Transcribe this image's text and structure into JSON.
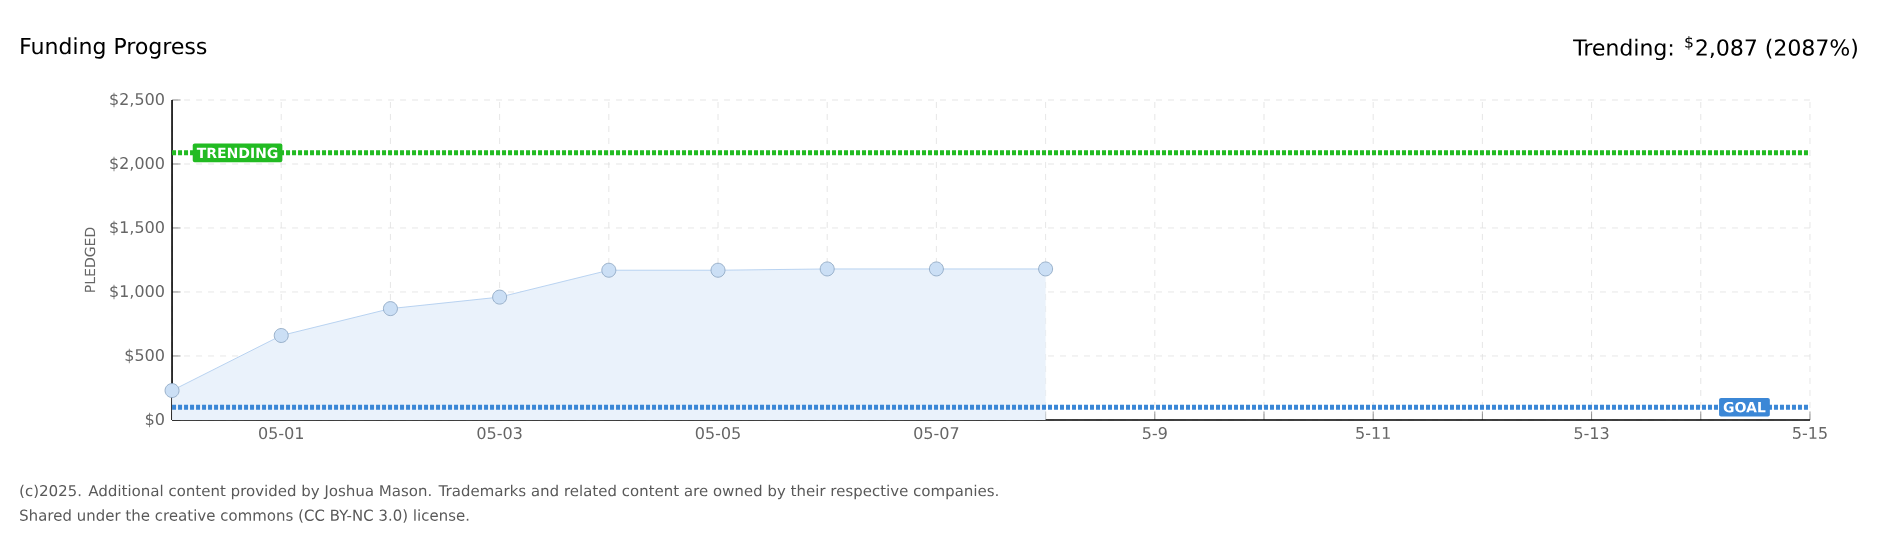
{
  "chart_data": {
    "type": "area",
    "title": "Funding Progress",
    "subtitle": "Trending: $^{$}$2,087 (2087%)",
    "ylabel": "PLEDGED",
    "categories": [
      null,
      "05-01",
      null,
      "05-03",
      null,
      "05-05",
      null,
      "05-07",
      null,
      "5-9",
      null,
      "5-11",
      null,
      "5-13",
      null,
      "5-15"
    ],
    "series": [
      {
        "color": "#a9c9ee",
        "values": [
          230,
          660,
          870,
          960,
          1170,
          1170,
          1180,
          1180,
          1180,
          null,
          null,
          null,
          null,
          null,
          null,
          null
        ]
      }
    ],
    "ylim": [
      0,
      2500
    ],
    "yticks": [
      {
        "value": 0,
        "label": "$0"
      },
      {
        "value": 500,
        "label": "$500"
      },
      {
        "value": 1000,
        "label": "$1,000"
      },
      {
        "value": 1500,
        "label": "$1,500"
      },
      {
        "value": 2000,
        "label": "$2,000"
      },
      {
        "value": 2500,
        "label": "$2,500"
      }
    ],
    "ref_lines": [
      {
        "axis": "y",
        "value": 2087,
        "label": "TRENDING",
        "color": "#22bb22",
        "line_style": "dotted"
      },
      {
        "axis": "y",
        "value": 100,
        "label": "GOAL",
        "color": "#3b87d6",
        "line_style": "dotted"
      }
    ],
    "grid": true,
    "marker": "circle",
    "annotations": [
      "(c)2025. Additional content provided by Joshua Mason. Trademarks and related content are owned by their respective companies.",
      "Shared under the creative commons (CC BY-NC 3.0) license."
    ]
  }
}
